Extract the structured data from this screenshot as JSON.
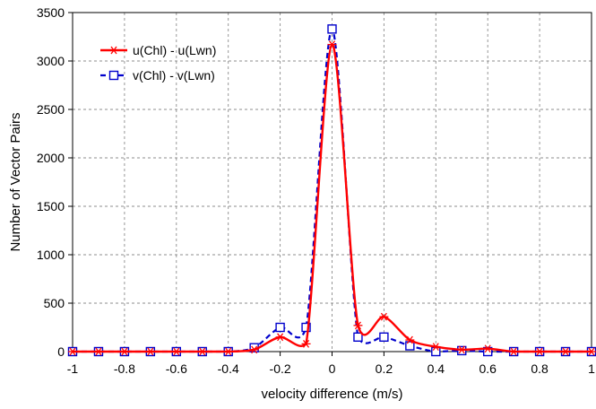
{
  "chart_data": {
    "type": "line",
    "title": "",
    "xlabel": "velocity difference (m/s)",
    "ylabel": "Number of Vector Pairs",
    "xlim": [
      -1,
      1
    ],
    "ylim": [
      0,
      3500
    ],
    "xticks": [
      -1,
      -0.8,
      -0.6,
      -0.4,
      -0.2,
      0,
      0.2,
      0.4,
      0.6,
      0.8,
      1
    ],
    "xtick_labels": [
      "-1",
      "-0.8",
      "-0.6",
      "-0.4",
      "-0.2",
      "0",
      "0.2",
      "0.4",
      "0.6",
      "0.8",
      "1"
    ],
    "yticks": [
      0,
      500,
      1000,
      1500,
      2000,
      2500,
      3000,
      3500
    ],
    "ytick_labels": [
      "0",
      "500",
      "1000",
      "1500",
      "2000",
      "2500",
      "3000",
      "3500"
    ],
    "grid": true,
    "grid_style": "dashed",
    "legend_position": "top-left",
    "x": [
      -1,
      -0.9,
      -0.8,
      -0.7,
      -0.6,
      -0.5,
      -0.4,
      -0.3,
      -0.2,
      -0.1,
      0,
      0.1,
      0.2,
      0.3,
      0.4,
      0.5,
      0.6,
      0.7,
      0.8,
      0.9,
      1
    ],
    "series": [
      {
        "name": "u(Chl) - u(Lwn)",
        "color": "#ff0000",
        "line_style": "solid",
        "marker": "asterisk",
        "values": [
          0,
          0,
          0,
          0,
          0,
          0,
          0,
          20,
          150,
          80,
          3170,
          270,
          360,
          120,
          50,
          20,
          30,
          0,
          0,
          0,
          0
        ]
      },
      {
        "name": "v(Chl) - v(Lwn)",
        "color": "#0000cc",
        "line_style": "dashed",
        "marker": "square",
        "values": [
          0,
          0,
          0,
          0,
          0,
          0,
          0,
          40,
          250,
          250,
          3330,
          150,
          150,
          60,
          0,
          10,
          0,
          0,
          0,
          0,
          0
        ]
      }
    ]
  }
}
